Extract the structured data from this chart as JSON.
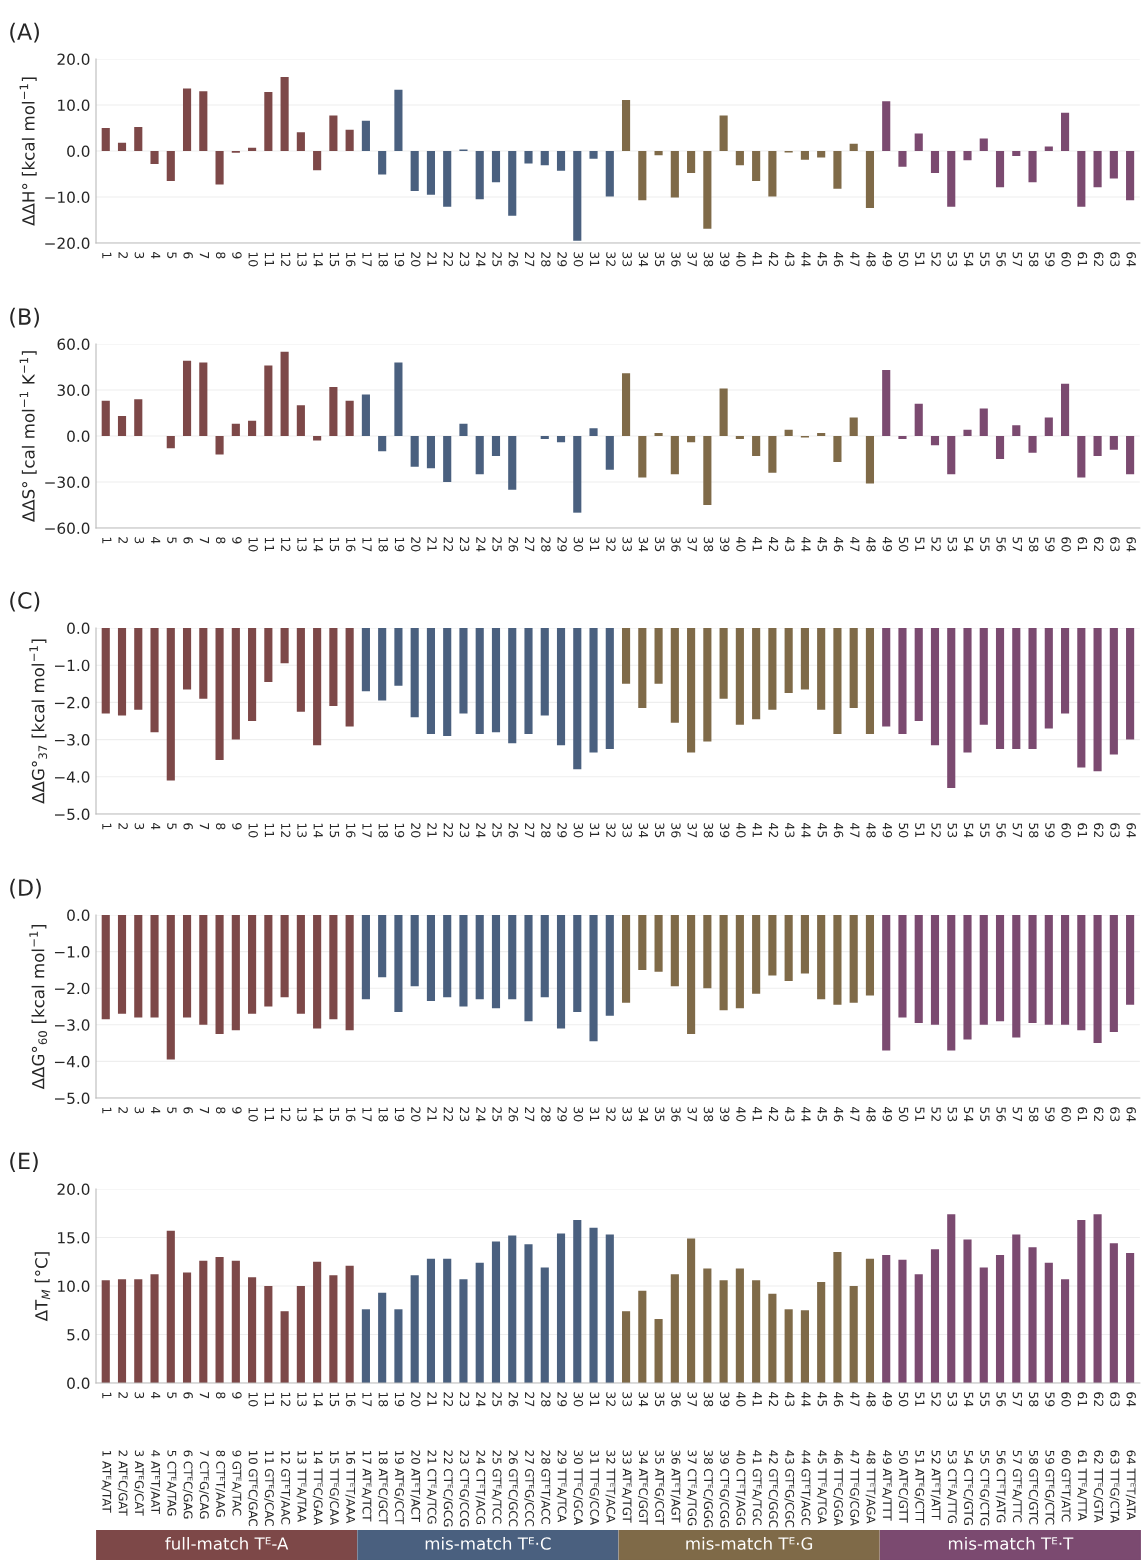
{
  "chart_data": [
    {
      "type": "bar",
      "title": "(A)",
      "ylabel": "ΔΔH° [kcal mol$^{−1}$]",
      "categories": [
        "1",
        "2",
        "3",
        "4",
        "5",
        "6",
        "7",
        "8",
        "9",
        "10",
        "11",
        "12",
        "13",
        "14",
        "15",
        "16",
        "17",
        "18",
        "19",
        "20",
        "21",
        "22",
        "23",
        "24",
        "25",
        "26",
        "27",
        "28",
        "29",
        "30",
        "31",
        "32",
        "33",
        "34",
        "35",
        "36",
        "37",
        "38",
        "39",
        "40",
        "41",
        "42",
        "43",
        "44",
        "45",
        "46",
        "47",
        "48",
        "49",
        "50",
        "51",
        "52",
        "53",
        "54",
        "55",
        "56",
        "57",
        "58",
        "59",
        "60",
        "61",
        "62",
        "63",
        "64"
      ],
      "ylim": [
        -20,
        20
      ],
      "yticks": [
        {
          "value": -20,
          "label": "−20.0"
        },
        {
          "value": -10,
          "label": "−10.0"
        },
        {
          "value": 0,
          "label": "0.0"
        },
        {
          "value": 10,
          "label": "10.0"
        },
        {
          "value": 20,
          "label": "20.0"
        }
      ],
      "grid": "y",
      "series": [
        {
          "color": "#7d4848",
          "values": [
            5.0,
            1.8,
            5.2,
            -2.8,
            -6.5,
            13.6,
            13.0,
            -7.3,
            -0.4,
            0.7,
            12.8,
            16.1,
            4.1,
            -4.2,
            7.7,
            4.6,
            null,
            null,
            null,
            null,
            null,
            null,
            null,
            null,
            null,
            null,
            null,
            null,
            null,
            null,
            null,
            null,
            null,
            null,
            null,
            null,
            null,
            null,
            null,
            null,
            null,
            null,
            null,
            null,
            null,
            null,
            null,
            null,
            null,
            null,
            null,
            null,
            null,
            null,
            null,
            null,
            null,
            null,
            null,
            null,
            null,
            null,
            null,
            null
          ]
        },
        {
          "color": "#4a607f",
          "values": [
            null,
            null,
            null,
            null,
            null,
            null,
            null,
            null,
            null,
            null,
            null,
            null,
            null,
            null,
            null,
            null,
            6.6,
            -5.1,
            13.3,
            -8.7,
            -9.5,
            -12.1,
            0.3,
            -10.5,
            -6.8,
            -14.1,
            -2.7,
            -3.1,
            -4.3,
            -19.5,
            -1.7,
            -9.9,
            null,
            null,
            null,
            null,
            null,
            null,
            null,
            null,
            null,
            null,
            null,
            null,
            null,
            null,
            null,
            null,
            null,
            null,
            null,
            null,
            null,
            null,
            null,
            null,
            null,
            null,
            null,
            null,
            null,
            null,
            null,
            null
          ]
        },
        {
          "color": "#7f6a48",
          "values": [
            null,
            null,
            null,
            null,
            null,
            null,
            null,
            null,
            null,
            null,
            null,
            null,
            null,
            null,
            null,
            null,
            null,
            null,
            null,
            null,
            null,
            null,
            null,
            null,
            null,
            null,
            null,
            null,
            null,
            null,
            null,
            null,
            11.1,
            -10.7,
            -0.9,
            -10.1,
            -4.8,
            -16.9,
            7.7,
            -3.1,
            -6.5,
            -9.9,
            -0.3,
            -1.9,
            -1.4,
            -8.2,
            1.6,
            -12.4,
            null,
            null,
            null,
            null,
            null,
            null,
            null,
            null,
            null,
            null,
            null,
            null,
            null,
            null,
            null,
            null
          ]
        },
        {
          "color": "#7b4a70",
          "values": [
            null,
            null,
            null,
            null,
            null,
            null,
            null,
            null,
            null,
            null,
            null,
            null,
            null,
            null,
            null,
            null,
            null,
            null,
            null,
            null,
            null,
            null,
            null,
            null,
            null,
            null,
            null,
            null,
            null,
            null,
            null,
            null,
            null,
            null,
            null,
            null,
            null,
            null,
            null,
            null,
            null,
            null,
            null,
            null,
            null,
            null,
            null,
            null,
            10.8,
            -3.4,
            3.8,
            -4.8,
            -12.1,
            -2.0,
            2.7,
            -7.9,
            -1.1,
            -6.8,
            1.0,
            8.3,
            -12.1,
            -7.9,
            -6.0,
            -10.7
          ]
        }
      ]
    },
    {
      "type": "bar",
      "title": "(B)",
      "ylabel": "ΔΔS° [cal mol$^{−1}$ K$^{−1}$]",
      "categories": [
        "1",
        "2",
        "3",
        "4",
        "5",
        "6",
        "7",
        "8",
        "9",
        "10",
        "11",
        "12",
        "13",
        "14",
        "15",
        "16",
        "17",
        "18",
        "19",
        "20",
        "21",
        "22",
        "23",
        "24",
        "25",
        "26",
        "27",
        "28",
        "29",
        "30",
        "31",
        "32",
        "33",
        "34",
        "35",
        "36",
        "37",
        "38",
        "39",
        "40",
        "41",
        "42",
        "43",
        "44",
        "45",
        "46",
        "47",
        "48",
        "49",
        "50",
        "51",
        "52",
        "53",
        "54",
        "55",
        "56",
        "57",
        "58",
        "59",
        "60",
        "61",
        "62",
        "63",
        "64"
      ],
      "ylim": [
        -60,
        60
      ],
      "yticks": [
        {
          "value": -60,
          "label": "−60.0"
        },
        {
          "value": -30,
          "label": "−30.0"
        },
        {
          "value": 0,
          "label": "0.0"
        },
        {
          "value": 30,
          "label": "30.0"
        },
        {
          "value": 60,
          "label": "60.0"
        }
      ],
      "grid": "y",
      "series": [
        {
          "color": "#7d4848",
          "values": [
            23,
            13,
            24,
            0,
            -8,
            49,
            48,
            -12,
            8,
            10,
            46,
            55,
            20,
            -3,
            32,
            23,
            null,
            null,
            null,
            null,
            null,
            null,
            null,
            null,
            null,
            null,
            null,
            null,
            null,
            null,
            null,
            null,
            null,
            null,
            null,
            null,
            null,
            null,
            null,
            null,
            null,
            null,
            null,
            null,
            null,
            null,
            null,
            null,
            null,
            null,
            null,
            null,
            null,
            null,
            null,
            null,
            null,
            null,
            null,
            null,
            null,
            null,
            null,
            null
          ]
        },
        {
          "color": "#4a607f",
          "values": [
            null,
            null,
            null,
            null,
            null,
            null,
            null,
            null,
            null,
            null,
            null,
            null,
            null,
            null,
            null,
            null,
            27,
            -10,
            48,
            -20,
            -21,
            -30,
            8,
            -25,
            -13,
            -35,
            0,
            -2,
            -4,
            -50,
            5,
            -22,
            null,
            null,
            null,
            null,
            null,
            null,
            null,
            null,
            null,
            null,
            null,
            null,
            null,
            null,
            null,
            null,
            null,
            null,
            null,
            null,
            null,
            null,
            null,
            null,
            null,
            null,
            null,
            null,
            null,
            null,
            null,
            null
          ]
        },
        {
          "color": "#7f6a48",
          "values": [
            null,
            null,
            null,
            null,
            null,
            null,
            null,
            null,
            null,
            null,
            null,
            null,
            null,
            null,
            null,
            null,
            null,
            null,
            null,
            null,
            null,
            null,
            null,
            null,
            null,
            null,
            null,
            null,
            null,
            null,
            null,
            null,
            41,
            -27,
            2,
            -25,
            -4,
            -45,
            31,
            -2,
            -13,
            -24,
            4,
            -1,
            2,
            -17,
            12,
            -31,
            null,
            null,
            null,
            null,
            null,
            null,
            null,
            null,
            null,
            null,
            null,
            null,
            null,
            null,
            null,
            null
          ]
        },
        {
          "color": "#7b4a70",
          "values": [
            null,
            null,
            null,
            null,
            null,
            null,
            null,
            null,
            null,
            null,
            null,
            null,
            null,
            null,
            null,
            null,
            null,
            null,
            null,
            null,
            null,
            null,
            null,
            null,
            null,
            null,
            null,
            null,
            null,
            null,
            null,
            null,
            null,
            null,
            null,
            null,
            null,
            null,
            null,
            null,
            null,
            null,
            null,
            null,
            null,
            null,
            null,
            null,
            43,
            -2,
            21,
            -6,
            -25,
            4,
            18,
            -15,
            7,
            -11,
            12,
            34,
            -27,
            -13,
            -9,
            -25
          ]
        }
      ]
    },
    {
      "type": "bar",
      "title": "(C)",
      "ylabel": "ΔΔG°$_{37}$ [kcal mol$^{−1}$]",
      "categories": [
        "1",
        "2",
        "3",
        "4",
        "5",
        "6",
        "7",
        "8",
        "9",
        "10",
        "11",
        "12",
        "13",
        "14",
        "15",
        "16",
        "17",
        "18",
        "19",
        "20",
        "21",
        "22",
        "23",
        "24",
        "25",
        "26",
        "27",
        "28",
        "29",
        "30",
        "31",
        "32",
        "33",
        "34",
        "35",
        "36",
        "37",
        "38",
        "39",
        "40",
        "41",
        "42",
        "43",
        "44",
        "45",
        "46",
        "47",
        "48",
        "49",
        "50",
        "51",
        "52",
        "53",
        "54",
        "55",
        "56",
        "57",
        "58",
        "59",
        "60",
        "61",
        "62",
        "63",
        "64"
      ],
      "ylim": [
        -5,
        0
      ],
      "yticks": [
        {
          "value": -5,
          "label": "−5.0"
        },
        {
          "value": -4,
          "label": "−4.0"
        },
        {
          "value": -3,
          "label": "−3.0"
        },
        {
          "value": -2,
          "label": "−2.0"
        },
        {
          "value": -1,
          "label": "−1.0"
        },
        {
          "value": 0,
          "label": "0.0"
        }
      ],
      "grid": "y",
      "series": [
        {
          "color": "#7d4848",
          "values": [
            -2.3,
            -2.35,
            -2.2,
            -2.8,
            -4.1,
            -1.65,
            -1.9,
            -3.55,
            -3.0,
            -2.5,
            -1.45,
            -0.95,
            -2.25,
            -3.15,
            -2.1,
            -2.65,
            null,
            null,
            null,
            null,
            null,
            null,
            null,
            null,
            null,
            null,
            null,
            null,
            null,
            null,
            null,
            null,
            null,
            null,
            null,
            null,
            null,
            null,
            null,
            null,
            null,
            null,
            null,
            null,
            null,
            null,
            null,
            null,
            null,
            null,
            null,
            null,
            null,
            null,
            null,
            null,
            null,
            null,
            null,
            null,
            null,
            null,
            null,
            null
          ]
        },
        {
          "color": "#4a607f",
          "values": [
            null,
            null,
            null,
            null,
            null,
            null,
            null,
            null,
            null,
            null,
            null,
            null,
            null,
            null,
            null,
            null,
            -1.7,
            -1.95,
            -1.55,
            -2.4,
            -2.85,
            -2.9,
            -2.3,
            -2.85,
            -2.8,
            -3.1,
            -2.85,
            -2.35,
            -3.15,
            -3.8,
            -3.35,
            -3.25,
            null,
            null,
            null,
            null,
            null,
            null,
            null,
            null,
            null,
            null,
            null,
            null,
            null,
            null,
            null,
            null,
            null,
            null,
            null,
            null,
            null,
            null,
            null,
            null,
            null,
            null,
            null,
            null,
            null,
            null,
            null,
            null
          ]
        },
        {
          "color": "#7f6a48",
          "values": [
            null,
            null,
            null,
            null,
            null,
            null,
            null,
            null,
            null,
            null,
            null,
            null,
            null,
            null,
            null,
            null,
            null,
            null,
            null,
            null,
            null,
            null,
            null,
            null,
            null,
            null,
            null,
            null,
            null,
            null,
            null,
            null,
            -1.5,
            -2.15,
            -1.5,
            -2.55,
            -3.35,
            -3.05,
            -1.9,
            -2.6,
            -2.45,
            -2.2,
            -1.75,
            -1.65,
            -2.2,
            -2.85,
            -2.15,
            -2.85,
            null,
            null,
            null,
            null,
            null,
            null,
            null,
            null,
            null,
            null,
            null,
            null,
            null,
            null,
            null,
            null
          ]
        },
        {
          "color": "#7b4a70",
          "values": [
            null,
            null,
            null,
            null,
            null,
            null,
            null,
            null,
            null,
            null,
            null,
            null,
            null,
            null,
            null,
            null,
            null,
            null,
            null,
            null,
            null,
            null,
            null,
            null,
            null,
            null,
            null,
            null,
            null,
            null,
            null,
            null,
            null,
            null,
            null,
            null,
            null,
            null,
            null,
            null,
            null,
            null,
            null,
            null,
            null,
            null,
            null,
            null,
            -2.65,
            -2.85,
            -2.5,
            -3.15,
            -4.3,
            -3.35,
            -2.6,
            -3.25,
            -3.25,
            -3.25,
            -2.7,
            -2.3,
            -3.75,
            -3.85,
            -3.4,
            -3.0
          ]
        }
      ]
    },
    {
      "type": "bar",
      "title": "(D)",
      "ylabel": "ΔΔG°$_{60}$ [kcal mol$^{−1}$]",
      "categories": [
        "1",
        "2",
        "3",
        "4",
        "5",
        "6",
        "7",
        "8",
        "9",
        "10",
        "11",
        "12",
        "13",
        "14",
        "15",
        "16",
        "17",
        "18",
        "19",
        "20",
        "21",
        "22",
        "23",
        "24",
        "25",
        "26",
        "27",
        "28",
        "29",
        "30",
        "31",
        "32",
        "33",
        "34",
        "35",
        "36",
        "37",
        "38",
        "39",
        "40",
        "41",
        "42",
        "43",
        "44",
        "45",
        "46",
        "47",
        "48",
        "49",
        "50",
        "51",
        "52",
        "53",
        "54",
        "55",
        "56",
        "57",
        "58",
        "59",
        "60",
        "61",
        "62",
        "63",
        "64"
      ],
      "ylim": [
        -5,
        0
      ],
      "yticks": [
        {
          "value": -5,
          "label": "−5.0"
        },
        {
          "value": -4,
          "label": "−4.0"
        },
        {
          "value": -3,
          "label": "−3.0"
        },
        {
          "value": -2,
          "label": "−2.0"
        },
        {
          "value": -1,
          "label": "−1.0"
        },
        {
          "value": 0,
          "label": "0.0"
        }
      ],
      "grid": "y",
      "series": [
        {
          "color": "#7d4848",
          "values": [
            -2.85,
            -2.7,
            -2.8,
            -2.8,
            -3.95,
            -2.8,
            -3.0,
            -3.25,
            -3.15,
            -2.7,
            -2.5,
            -2.25,
            -2.7,
            -3.1,
            -2.85,
            -3.15,
            null,
            null,
            null,
            null,
            null,
            null,
            null,
            null,
            null,
            null,
            null,
            null,
            null,
            null,
            null,
            null,
            null,
            null,
            null,
            null,
            null,
            null,
            null,
            null,
            null,
            null,
            null,
            null,
            null,
            null,
            null,
            null,
            null,
            null,
            null,
            null,
            null,
            null,
            null,
            null,
            null,
            null,
            null,
            null,
            null,
            null,
            null,
            null
          ]
        },
        {
          "color": "#4a607f",
          "values": [
            null,
            null,
            null,
            null,
            null,
            null,
            null,
            null,
            null,
            null,
            null,
            null,
            null,
            null,
            null,
            null,
            -2.3,
            -1.7,
            -2.65,
            -1.95,
            -2.35,
            -2.25,
            -2.5,
            -2.3,
            -2.55,
            -2.3,
            -2.9,
            -2.25,
            -3.1,
            -2.65,
            -3.45,
            -2.75,
            null,
            null,
            null,
            null,
            null,
            null,
            null,
            null,
            null,
            null,
            null,
            null,
            null,
            null,
            null,
            null,
            null,
            null,
            null,
            null,
            null,
            null,
            null,
            null,
            null,
            null,
            null,
            null,
            null,
            null,
            null,
            null
          ]
        },
        {
          "color": "#7f6a48",
          "values": [
            null,
            null,
            null,
            null,
            null,
            null,
            null,
            null,
            null,
            null,
            null,
            null,
            null,
            null,
            null,
            null,
            null,
            null,
            null,
            null,
            null,
            null,
            null,
            null,
            null,
            null,
            null,
            null,
            null,
            null,
            null,
            null,
            -2.4,
            -1.5,
            -1.55,
            -1.95,
            -3.25,
            -2.0,
            -2.6,
            -2.55,
            -2.15,
            -1.65,
            -1.8,
            -1.6,
            -2.3,
            -2.45,
            -2.4,
            -2.2,
            null,
            null,
            null,
            null,
            null,
            null,
            null,
            null,
            null,
            null,
            null,
            null,
            null,
            null,
            null,
            null
          ]
        },
        {
          "color": "#7b4a70",
          "values": [
            null,
            null,
            null,
            null,
            null,
            null,
            null,
            null,
            null,
            null,
            null,
            null,
            null,
            null,
            null,
            null,
            null,
            null,
            null,
            null,
            null,
            null,
            null,
            null,
            null,
            null,
            null,
            null,
            null,
            null,
            null,
            null,
            null,
            null,
            null,
            null,
            null,
            null,
            null,
            null,
            null,
            null,
            null,
            null,
            null,
            null,
            null,
            null,
            -3.7,
            -2.8,
            -2.95,
            -3.0,
            -3.7,
            -3.4,
            -3.0,
            -2.9,
            -3.35,
            -2.95,
            -3.0,
            -3.0,
            -3.15,
            -3.5,
            -3.2,
            -2.45
          ]
        }
      ]
    },
    {
      "type": "bar",
      "title": "(E)",
      "ylabel": "ΔT$_{M}$ [°C]",
      "categories": [
        "1",
        "2",
        "3",
        "4",
        "5",
        "6",
        "7",
        "8",
        "9",
        "10",
        "11",
        "12",
        "13",
        "14",
        "15",
        "16",
        "17",
        "18",
        "19",
        "20",
        "21",
        "22",
        "23",
        "24",
        "25",
        "26",
        "27",
        "28",
        "29",
        "30",
        "31",
        "32",
        "33",
        "34",
        "35",
        "36",
        "37",
        "38",
        "39",
        "40",
        "41",
        "42",
        "43",
        "44",
        "45",
        "46",
        "47",
        "48",
        "49",
        "50",
        "51",
        "52",
        "53",
        "54",
        "55",
        "56",
        "57",
        "58",
        "59",
        "60",
        "61",
        "62",
        "63",
        "64"
      ],
      "ylim": [
        0,
        20
      ],
      "yticks": [
        {
          "value": 0,
          "label": "0.0"
        },
        {
          "value": 5,
          "label": "5.0"
        },
        {
          "value": 10,
          "label": "10.0"
        },
        {
          "value": 15,
          "label": "15.0"
        },
        {
          "value": 20,
          "label": "20.0"
        }
      ],
      "grid": "y",
      "legend": "bottom",
      "annotations": [
        "1 ATᴱA/TAT",
        "2 ATᴱC/GAT",
        "3 ATᴱG/CAT",
        "4 ATᴱT/AAT",
        "5 CTᴱA/TAG",
        "6 CTᴱC/GAG",
        "7 CTᴱG/CAG",
        "8 CTᴱT/AAG",
        "9 GTᴱA/TAC",
        "10 GTᴱC/GAC",
        "11 GTᴱG/CAC",
        "12 GTᴱT/AAC",
        "13 TTᴱA/TAA",
        "14 TTᴱC/GAA",
        "15 TTᴱG/CAA",
        "16 TTᴱT/AAA",
        "17 ATᴱA/TCT",
        "18 ATᴱC/GCT",
        "19 ATᴱG/CCT",
        "20 ATᴱT/ACT",
        "21 CTᴱA/TCG",
        "22 CTᴱC/GCG",
        "23 CTᴱG/CCG",
        "24 CTᴱT/ACG",
        "25 GTᴱA/TCC",
        "26 GTᴱC/GCC",
        "27 GTᴱG/CCC",
        "28 GTᴱT/ACC",
        "29 TTᴱA/TCA",
        "30 TTᴱC/GCA",
        "31 TTᴱG/CCA",
        "32 TTᴱT/ACA",
        "33 ATᴱA/TGT",
        "34 ATᴱC/GGT",
        "35 ATᴱG/CGT",
        "36 ATᴱT/AGT",
        "37 CTᴱA/TGG",
        "38 CTᴱC/GGG",
        "39 CTᴱG/CGG",
        "40 CTᴱT/AGG",
        "41 GTᴱA/TGC",
        "42 GTᴱC/GGC",
        "43 GTᴱG/CGC",
        "44 GTᴱT/AGC",
        "45 TTᴱA/TGA",
        "46 TTᴱC/GGA",
        "47 TTᴱG/CGA",
        "48 TTᴱT/AGA",
        "49 ATᴱA/TTT",
        "50 ATᴱC/GTT",
        "51 ATᴱG/CTT",
        "52 ATᴱT/ATT",
        "53 CTᴱA/TTG",
        "54 CTᴱC/GTG",
        "55 CTᴱG/CTG",
        "56 CTᴱT/ATG",
        "57 GTᴱA/TTC",
        "58 GTᴱC/GTC",
        "59 GTᴱG/CTC",
        "60 GTᴱT/ATC",
        "61 TTᴱA/TTA",
        "62 TTᴱC/GTA",
        "63 TTᴱG/CTA",
        "64 TTᴱT/ATA"
      ],
      "series": [
        {
          "name": "full-match Tᴱ-A",
          "color": "#7d4848",
          "values": [
            10.6,
            10.7,
            10.7,
            11.2,
            15.7,
            11.4,
            12.6,
            13.0,
            12.6,
            10.9,
            10.0,
            7.4,
            10.0,
            12.5,
            11.1,
            12.1,
            null,
            null,
            null,
            null,
            null,
            null,
            null,
            null,
            null,
            null,
            null,
            null,
            null,
            null,
            null,
            null,
            null,
            null,
            null,
            null,
            null,
            null,
            null,
            null,
            null,
            null,
            null,
            null,
            null,
            null,
            null,
            null,
            null,
            null,
            null,
            null,
            null,
            null,
            null,
            null,
            null,
            null,
            null,
            null,
            null,
            null,
            null,
            null
          ]
        },
        {
          "name": "mis-match Tᴱ·C",
          "color": "#4a607f",
          "values": [
            null,
            null,
            null,
            null,
            null,
            null,
            null,
            null,
            null,
            null,
            null,
            null,
            null,
            null,
            null,
            null,
            7.6,
            9.3,
            7.6,
            11.1,
            12.8,
            12.8,
            10.7,
            12.4,
            14.6,
            15.2,
            14.3,
            11.9,
            15.4,
            16.8,
            16.0,
            15.3,
            null,
            null,
            null,
            null,
            null,
            null,
            null,
            null,
            null,
            null,
            null,
            null,
            null,
            null,
            null,
            null,
            null,
            null,
            null,
            null,
            null,
            null,
            null,
            null,
            null,
            null,
            null,
            null,
            null,
            null,
            null,
            null
          ]
        },
        {
          "name": "mis-match Tᴱ·G",
          "color": "#7f6a48",
          "values": [
            null,
            null,
            null,
            null,
            null,
            null,
            null,
            null,
            null,
            null,
            null,
            null,
            null,
            null,
            null,
            null,
            null,
            null,
            null,
            null,
            null,
            null,
            null,
            null,
            null,
            null,
            null,
            null,
            null,
            null,
            null,
            null,
            7.4,
            9.5,
            6.6,
            11.2,
            14.9,
            11.8,
            10.6,
            11.8,
            10.6,
            9.2,
            7.6,
            7.5,
            10.4,
            13.5,
            10.0,
            12.8,
            null,
            null,
            null,
            null,
            null,
            null,
            null,
            null,
            null,
            null,
            null,
            null,
            null,
            null,
            null,
            null
          ]
        },
        {
          "name": "mis-match Tᴱ·T",
          "color": "#7b4a70",
          "values": [
            null,
            null,
            null,
            null,
            null,
            null,
            null,
            null,
            null,
            null,
            null,
            null,
            null,
            null,
            null,
            null,
            null,
            null,
            null,
            null,
            null,
            null,
            null,
            null,
            null,
            null,
            null,
            null,
            null,
            null,
            null,
            null,
            null,
            null,
            null,
            null,
            null,
            null,
            null,
            null,
            null,
            null,
            null,
            null,
            null,
            null,
            null,
            null,
            13.2,
            12.7,
            11.2,
            13.8,
            17.4,
            14.8,
            11.9,
            13.2,
            15.3,
            14.0,
            12.4,
            10.7,
            16.8,
            17.4,
            14.4,
            13.4
          ]
        }
      ]
    }
  ]
}
